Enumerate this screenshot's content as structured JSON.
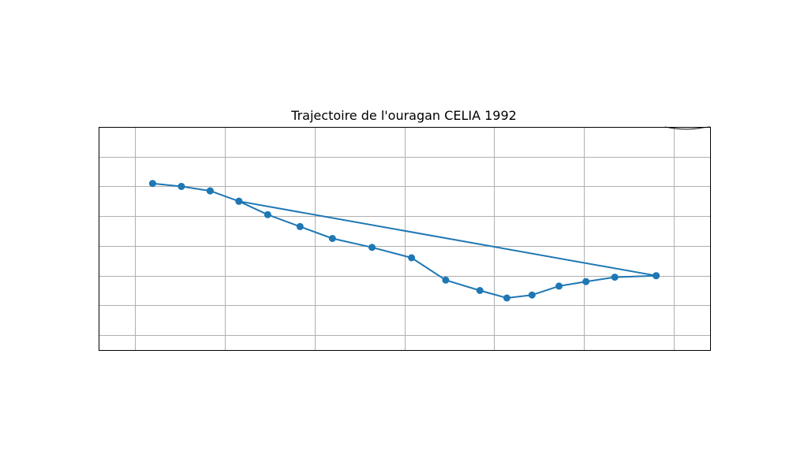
{
  "chart_data": {
    "type": "line",
    "title": "Trajectoire de l'ouragan CELIA 1992",
    "xlabel": "",
    "ylabel": "",
    "grid": true,
    "legend": "none",
    "xlim": [
      -127,
      -93
    ],
    "ylim": [
      8,
      23
    ],
    "series_color": "#1f77b4",
    "series": [
      {
        "name": "",
        "points": [
          {
            "lon": -96.0,
            "lat": 13.0
          },
          {
            "lon": -98.3,
            "lat": 12.9
          },
          {
            "lon": -99.9,
            "lat": 12.6
          },
          {
            "lon": -101.4,
            "lat": 12.3
          },
          {
            "lon": -102.9,
            "lat": 11.7
          },
          {
            "lon": -104.3,
            "lat": 11.5
          },
          {
            "lon": -105.8,
            "lat": 12.0
          },
          {
            "lon": -107.7,
            "lat": 12.7
          },
          {
            "lon": -109.6,
            "lat": 14.2
          },
          {
            "lon": -111.8,
            "lat": 14.9
          },
          {
            "lon": -114.0,
            "lat": 15.5
          },
          {
            "lon": -115.8,
            "lat": 16.3
          },
          {
            "lon": -117.6,
            "lat": 17.1
          },
          {
            "lon": -119.2,
            "lat": 18.0
          },
          {
            "lon": -120.8,
            "lat": 18.7
          },
          {
            "lon": -122.4,
            "lat": 19.0
          },
          {
            "lon": -124.0,
            "lat": 19.2
          },
          {
            "lon": -122.4,
            "lat": 19.0
          },
          {
            "lon": -120.8,
            "lat": 18.7
          },
          {
            "lon": -119.2,
            "lat": 18.0
          },
          {
            "lon": -96.0,
            "lat": 13.0
          }
        ]
      }
    ]
  }
}
